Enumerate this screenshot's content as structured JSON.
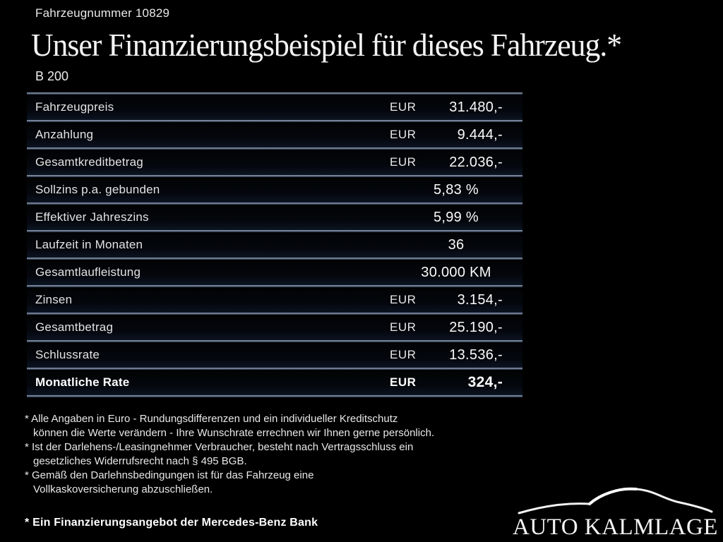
{
  "header": {
    "vehicle_number": "Fahrzeugnummer 10829",
    "title": "Unser Finanzierungsbeispiel für dieses Fahrzeug.*",
    "model": "B 200"
  },
  "table": {
    "rows": [
      {
        "label": "Fahrzeugpreis",
        "currency": "EUR",
        "value": "31.480,-",
        "align": "right",
        "bold": false
      },
      {
        "label": "Anzahlung",
        "currency": "EUR",
        "value": "9.444,-",
        "align": "right",
        "bold": false
      },
      {
        "label": "Gesamtkreditbetrag",
        "currency": "EUR",
        "value": "22.036,-",
        "align": "right",
        "bold": false
      },
      {
        "label": "Sollzins p.a. gebunden",
        "currency": "",
        "value": "5,83 %",
        "align": "center",
        "bold": false
      },
      {
        "label": "Effektiver Jahreszins",
        "currency": "",
        "value": "5,99 %",
        "align": "center",
        "bold": false
      },
      {
        "label": "Laufzeit in Monaten",
        "currency": "",
        "value": "36",
        "align": "center",
        "bold": false
      },
      {
        "label": "Gesamtlaufleistung",
        "currency": "",
        "value": "30.000 KM",
        "align": "center",
        "bold": false
      },
      {
        "label": "Zinsen",
        "currency": "EUR",
        "value": "3.154,-",
        "align": "right",
        "bold": false
      },
      {
        "label": "Gesamtbetrag",
        "currency": "EUR",
        "value": "25.190,-",
        "align": "right",
        "bold": false
      },
      {
        "label": "Schlussrate",
        "currency": "EUR",
        "value": "13.536,-",
        "align": "right",
        "bold": false
      },
      {
        "label": "Monatliche Rate",
        "currency": "EUR",
        "value": "324,-",
        "align": "right",
        "bold": true
      }
    ]
  },
  "footnotes": {
    "notes": [
      {
        "lines": [
          "* Alle Angaben in Euro - Rundungsdifferenzen und ein individueller Kreditschutz",
          "können die Werte verändern - Ihre Wunschrate errechnen wir Ihnen gerne persönlich."
        ]
      },
      {
        "lines": [
          "* Ist der Darlehens-/Leasingnehmer Verbraucher, besteht nach Vertragsschluss ein",
          "gesetzliches Widerrufsrecht nach § 495 BGB."
        ]
      },
      {
        "lines": [
          "* Gemäß den Darlehnsbedingungen ist für das Fahrzeug eine",
          "Vollkaskoversicherung abzuschließen."
        ]
      }
    ],
    "bank_note": "* Ein Finanzierungsangebot der Mercedes-Benz Bank"
  },
  "logo": {
    "dealer_name": "AUTO KALMLAGE"
  },
  "colors": {
    "background": "#000000",
    "text": "#f2f2f2",
    "divider": "#5c6a82",
    "row_sheen": "#0c1422"
  }
}
